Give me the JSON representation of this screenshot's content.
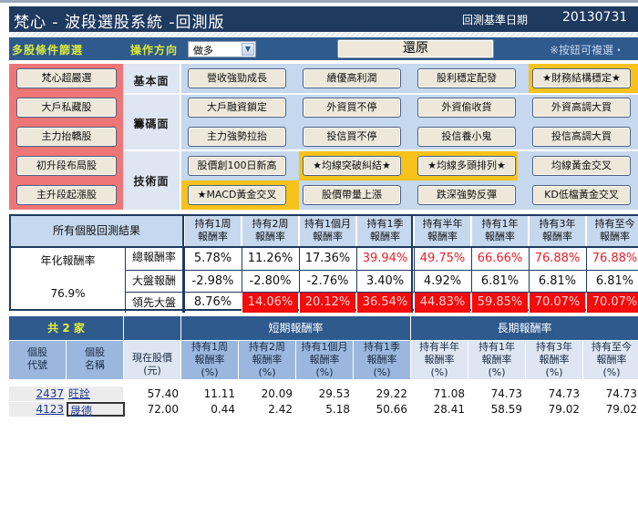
{
  "header": {
    "title": "梵心 - 波段選股系統 -回測版",
    "date_label": "回測基準日期",
    "date_value": "20130731"
  },
  "filterbar": {
    "multi_filter_label": "多股條件篩選",
    "direction_label": "操作方向",
    "direction_value": "做多",
    "restore_label": "還原",
    "note": "※按鈕可複選・"
  },
  "panel": {
    "left_buttons": [
      "梵心超嚴選",
      "大戶私藏股",
      "主力抬轎股",
      "初升段布局股",
      "主升段起漲股"
    ],
    "categories": [
      "基本面",
      "籌碼面",
      "技術面"
    ],
    "rows": [
      [
        "營收強勁成長",
        "績優高利潤",
        "股利穩定配發",
        "★財務結構穩定★"
      ],
      [
        "大戶融資鎖定",
        "外資買不停",
        "外資偷收貨",
        "外資高調大買"
      ],
      [
        "主力強勢拉抬",
        "投信買不停",
        "投信養小鬼",
        "投信高調大買"
      ],
      [
        "股價創100日新高",
        "★均線突破糾結★",
        "★均線多頭排列★",
        "均線黃金交叉"
      ],
      [
        "★MACD黃金交叉",
        "股價帶量上漲",
        "跌深強勢反彈",
        "KD低檔黃金交叉"
      ]
    ],
    "highlighted": [
      "★財務結構穩定★",
      "★均線突破糾結★",
      "★均線多頭排列★",
      "★MACD黃金交叉"
    ]
  },
  "results": {
    "title": "所有個股回測結果",
    "annual_label": "年化報酬率",
    "annual_value": "76.9%",
    "columns": [
      [
        "持有1周",
        "報酬率"
      ],
      [
        "持有2周",
        "報酬率"
      ],
      [
        "持有1個月",
        "報酬率"
      ],
      [
        "持有1季",
        "報酬率"
      ],
      [
        "持有半年",
        "報酬率"
      ],
      [
        "持有1年",
        "報酬率"
      ],
      [
        "持有3年",
        "報酬率"
      ],
      [
        "持有至今",
        "報酬率"
      ]
    ],
    "rows": [
      {
        "label": "總報酬率",
        "values": [
          "5.78%",
          "11.26%",
          "17.36%",
          "39.94%",
          "49.75%",
          "66.66%",
          "76.88%",
          "76.88%"
        ]
      },
      {
        "label": "大盤報酬",
        "values": [
          "-2.98%",
          "-2.80%",
          "-2.76%",
          "3.40%",
          "4.92%",
          "6.81%",
          "6.81%",
          "6.81%"
        ]
      },
      {
        "label": "領先大盤",
        "values": [
          "8.76%",
          "14.06%",
          "20.12%",
          "36.54%",
          "44.83%",
          "59.85%",
          "70.07%",
          "70.07%"
        ]
      }
    ]
  },
  "stock_table": {
    "count_label": "共 2 家",
    "short_term_label": "短期報酬率",
    "long_term_label": "長期報酬率",
    "col_code": [
      "個股",
      "代號"
    ],
    "col_name": [
      "個股",
      "名稱"
    ],
    "col_price": [
      "現在股價",
      "(元)"
    ],
    "columns": [
      [
        "持有1周",
        "報酬率",
        "(%)"
      ],
      [
        "持有2周",
        "報酬率",
        "(%)"
      ],
      [
        "持有1個月",
        "報酬率",
        "(%)"
      ],
      [
        "持有1季",
        "報酬率",
        "(%)"
      ],
      [
        "持有半年",
        "報酬率",
        "(%)"
      ],
      [
        "持有1年",
        "報酬率",
        "(%)"
      ],
      [
        "持有3年",
        "報酬率",
        "(%)"
      ],
      [
        "持有至今",
        "報酬率",
        "(%)"
      ]
    ],
    "rows": [
      {
        "code": "2437",
        "name": "旺詮",
        "price": "57.40",
        "values": [
          "11.11",
          "20.09",
          "29.53",
          "29.22",
          "71.08",
          "74.73",
          "74.73",
          "74.73"
        ]
      },
      {
        "code": "4123",
        "name": "晟德",
        "price": "72.00",
        "values": [
          "0.44",
          "2.42",
          "5.18",
          "50.66",
          "28.41",
          "58.59",
          "79.02",
          "79.02"
        ]
      }
    ]
  },
  "colors": {
    "navy": "#1f3a5f",
    "blue": "#2f5a8e",
    "accent_yellow": "#d8e83a",
    "highlight_gold": "#f7c21a",
    "left_red": "#ef7676",
    "alert_red": "#f20c0c"
  }
}
